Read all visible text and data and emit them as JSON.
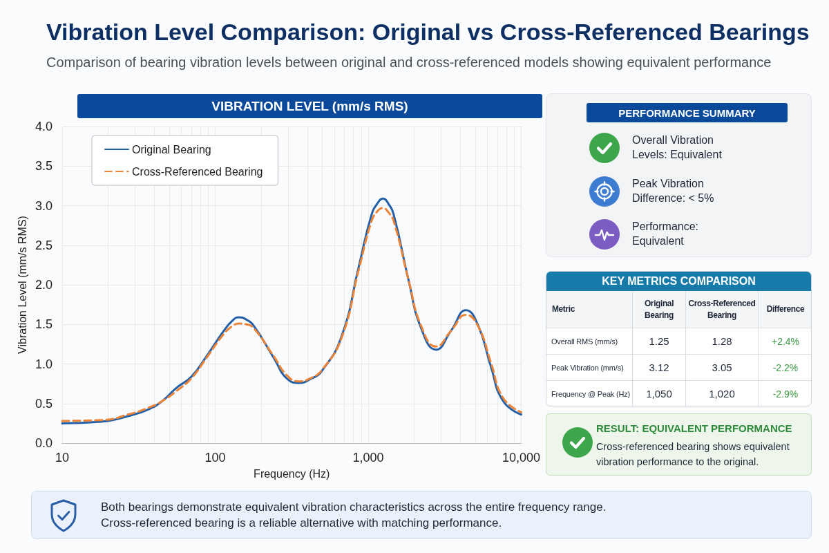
{
  "chart_data": [
    {
      "type": "line",
      "title": "Vibration Level Comparison: Original vs Cross-Referenced Bearings",
      "subtitle": "Comparison of bearing vibration levels between original and cross-referenced models showing equivalent performance",
      "annotations": [
        "VIBRATION LEVEL (mm/s RMS)"
      ],
      "xlabel": "Frequency (Hz)",
      "ylabel": "Vibration Level (mm/s RMS)",
      "x": [
        10,
        18,
        28,
        37,
        45,
        56,
        70,
        88,
        114,
        130,
        143,
        160,
        179,
        241,
        296,
        355,
        420,
        497,
        670,
        870,
        1050,
        1150,
        1250,
        1350,
        1470,
        1840,
        2220,
        2780,
        3480,
        4360,
        5250,
        6330,
        7620,
        10000
      ],
      "series": [
        {
          "name": "Original Bearing",
          "color": "#2360a8",
          "line_style": "solid",
          "values": [
            0.25,
            0.27,
            0.35,
            0.43,
            0.53,
            0.7,
            0.84,
            1.1,
            1.42,
            1.55,
            1.59,
            1.56,
            1.48,
            1.08,
            0.81,
            0.76,
            0.81,
            0.91,
            1.35,
            2.24,
            2.88,
            3.03,
            3.09,
            3.03,
            2.88,
            2.05,
            1.45,
            1.18,
            1.42,
            1.68,
            1.48,
            0.97,
            0.53,
            0.36
          ]
        },
        {
          "name": "Cross-Referenced Bearing",
          "color": "#ec8438",
          "line_style": "dashed",
          "values": [
            0.28,
            0.29,
            0.37,
            0.45,
            0.53,
            0.66,
            0.82,
            1.08,
            1.38,
            1.48,
            1.51,
            1.5,
            1.45,
            1.1,
            0.85,
            0.78,
            0.82,
            0.92,
            1.33,
            2.2,
            2.8,
            2.93,
            2.97,
            2.92,
            2.8,
            2.05,
            1.48,
            1.22,
            1.42,
            1.62,
            1.47,
            1.02,
            0.57,
            0.39
          ]
        }
      ],
      "log": "x",
      "xlim": [
        10,
        10000
      ],
      "xticks": [
        10,
        {
          "value": 20,
          "label": null
        },
        {
          "value": 30,
          "label": null
        },
        {
          "value": 40,
          "label": null
        },
        {
          "value": 50,
          "label": null
        },
        {
          "value": 60,
          "label": null
        },
        {
          "value": 70,
          "label": null
        },
        {
          "value": 80,
          "label": null
        },
        {
          "value": 90,
          "label": null
        },
        100,
        {
          "value": 200,
          "label": null
        },
        {
          "value": 300,
          "label": null
        },
        {
          "value": 400,
          "label": null
        },
        {
          "value": 500,
          "label": null
        },
        {
          "value": 600,
          "label": null
        },
        {
          "value": 700,
          "label": null
        },
        {
          "value": 800,
          "label": null
        },
        {
          "value": 900,
          "label": null
        },
        {
          "value": 1000,
          "label": "1,000"
        },
        {
          "value": 2000,
          "label": null
        },
        {
          "value": 3000,
          "label": null
        },
        {
          "value": 4000,
          "label": null
        },
        {
          "value": 5000,
          "label": null
        },
        {
          "value": 6000,
          "label": null
        },
        {
          "value": 7000,
          "label": null
        },
        {
          "value": 8000,
          "label": null
        },
        {
          "value": 9000,
          "label": null
        },
        {
          "value": 10000,
          "label": "10,000"
        }
      ],
      "ylim": [
        0,
        4
      ],
      "yticks": [
        {
          "value": 0,
          "label": "0.0"
        },
        0.5,
        {
          "value": 1,
          "label": "1.0"
        },
        1.5,
        {
          "value": 2,
          "label": "2.0"
        },
        2.5,
        {
          "value": 3,
          "label": "3.0"
        },
        3.5,
        {
          "value": 4,
          "label": "4.0"
        }
      ],
      "grid": true,
      "legend": "top left",
      "marker": "none"
    },
    {
      "type": "other",
      "title": "PERFORMANCE SUMMARY",
      "annotations": [
        "Overall Vibration Levels: Equivalent",
        "Peak Vibration Difference: < 5%",
        "Performance: Equivalent"
      ]
    },
    {
      "type": "other",
      "title": "KEY METRICS COMPARISON",
      "annotations": [
        "Metric",
        "Original Bearing",
        "Cross-Referenced Bearing",
        "Difference",
        "Overall RMS (mm/s)",
        "1.25",
        "1.28",
        "+2.4%",
        "Peak Vibration (mm/s)",
        "3.12",
        "3.05",
        "-2.2%",
        "Frequency @ Peak (Hz)",
        "1,050",
        "1,020",
        "-2.9%"
      ]
    },
    {
      "type": "other",
      "title": "RESULT: EQUIVALENT PERFORMANCE",
      "annotations": [
        "Cross-referenced bearing shows equivalent vibration performance to the original."
      ]
    },
    {
      "type": "other",
      "annotations": [
        "Both bearings demonstrate equivalent vibration characteristics across the entire frequency range.",
        "Cross-referenced bearing is a reliable alternative with matching performance."
      ]
    }
  ]
}
